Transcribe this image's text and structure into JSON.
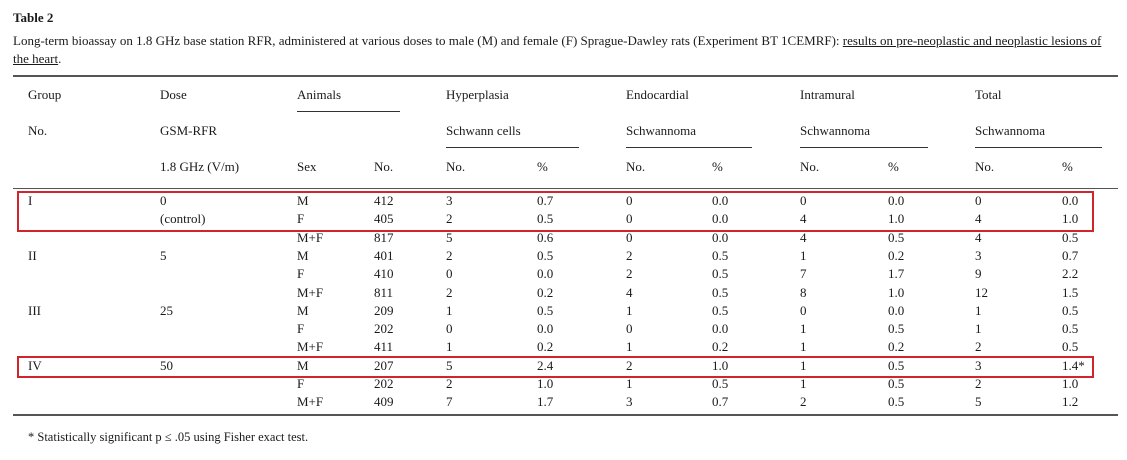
{
  "table_label": "Table 2",
  "caption": {
    "plain": "Long-term bioassay on 1.8 GHz base station RFR, administered at various doses to male (M) and female (F) Sprague-Dawley rats (Experiment BT 1CEMRF): ",
    "underlined": "results on pre-neoplastic and neoplastic lesions of the heart",
    "end": "."
  },
  "headers": {
    "group": "Group",
    "group_no": "No.",
    "dose": "Dose",
    "dose_unit": "GSM-RFR",
    "dose_freq": "1.8 GHz (V/m)",
    "animals": "Animals",
    "sex": "Sex",
    "animals_no": "No.",
    "hyper": "Hyperplasia",
    "hyper_sub": "Schwann cells",
    "endo": "Endocardial",
    "endo_sub": "Schwannoma",
    "intra": "Intramural",
    "intra_sub": "Schwannoma",
    "total": "Total",
    "total_sub": "Schwannoma",
    "no": "No.",
    "pct": "%"
  },
  "rows": [
    {
      "group": "I",
      "dose": "0",
      "sex": "M",
      "n": "412",
      "h_no": "3",
      "h_pct": "0.7",
      "e_no": "0",
      "e_pct": "0.0",
      "i_no": "0",
      "i_pct": "0.0",
      "t_no": "0",
      "t_pct": "0.0"
    },
    {
      "group": "",
      "dose": "(control)",
      "sex": "F",
      "n": "405",
      "h_no": "2",
      "h_pct": "0.5",
      "e_no": "0",
      "e_pct": "0.0",
      "i_no": "4",
      "i_pct": "1.0",
      "t_no": "4",
      "t_pct": "1.0"
    },
    {
      "group": "",
      "dose": "",
      "sex": "M+F",
      "n": "817",
      "h_no": "5",
      "h_pct": "0.6",
      "e_no": "0",
      "e_pct": "0.0",
      "i_no": "4",
      "i_pct": "0.5",
      "t_no": "4",
      "t_pct": "0.5"
    },
    {
      "group": "II",
      "dose": "5",
      "sex": "M",
      "n": "401",
      "h_no": "2",
      "h_pct": "0.5",
      "e_no": "2",
      "e_pct": "0.5",
      "i_no": "1",
      "i_pct": "0.2",
      "t_no": "3",
      "t_pct": "0.7"
    },
    {
      "group": "",
      "dose": "",
      "sex": "F",
      "n": "410",
      "h_no": "0",
      "h_pct": "0.0",
      "e_no": "2",
      "e_pct": "0.5",
      "i_no": "7",
      "i_pct": "1.7",
      "t_no": "9",
      "t_pct": "2.2"
    },
    {
      "group": "",
      "dose": "",
      "sex": "M+F",
      "n": "811",
      "h_no": "2",
      "h_pct": "0.2",
      "e_no": "4",
      "e_pct": "0.5",
      "i_no": "8",
      "i_pct": "1.0",
      "t_no": "12",
      "t_pct": "1.5"
    },
    {
      "group": "III",
      "dose": "25",
      "sex": "M",
      "n": "209",
      "h_no": "1",
      "h_pct": "0.5",
      "e_no": "1",
      "e_pct": "0.5",
      "i_no": "0",
      "i_pct": "0.0",
      "t_no": "1",
      "t_pct": "0.5"
    },
    {
      "group": "",
      "dose": "",
      "sex": "F",
      "n": "202",
      "h_no": "0",
      "h_pct": "0.0",
      "e_no": "0",
      "e_pct": "0.0",
      "i_no": "1",
      "i_pct": "0.5",
      "t_no": "1",
      "t_pct": "0.5"
    },
    {
      "group": "",
      "dose": "",
      "sex": "M+F",
      "n": "411",
      "h_no": "1",
      "h_pct": "0.2",
      "e_no": "1",
      "e_pct": "0.2",
      "i_no": "1",
      "i_pct": "0.2",
      "t_no": "2",
      "t_pct": "0.5"
    },
    {
      "group": "IV",
      "dose": "50",
      "sex": "M",
      "n": "207",
      "h_no": "5",
      "h_pct": "2.4",
      "e_no": "2",
      "e_pct": "1.0",
      "i_no": "1",
      "i_pct": "0.5",
      "t_no": "3",
      "t_pct": "1.4*"
    },
    {
      "group": "",
      "dose": "",
      "sex": "F",
      "n": "202",
      "h_no": "2",
      "h_pct": "1.0",
      "e_no": "1",
      "e_pct": "0.5",
      "i_no": "1",
      "i_pct": "0.5",
      "t_no": "2",
      "t_pct": "1.0"
    },
    {
      "group": "",
      "dose": "",
      "sex": "M+F",
      "n": "409",
      "h_no": "7",
      "h_pct": "1.7",
      "e_no": "3",
      "e_pct": "0.7",
      "i_no": "2",
      "i_pct": "0.5",
      "t_no": "5",
      "t_pct": "1.2"
    }
  ],
  "highlight_rows": [
    0,
    1,
    9
  ],
  "highlight_color": "#d0252c",
  "footnote": "* Statistically significant p ≤ .05 using Fisher exact test."
}
